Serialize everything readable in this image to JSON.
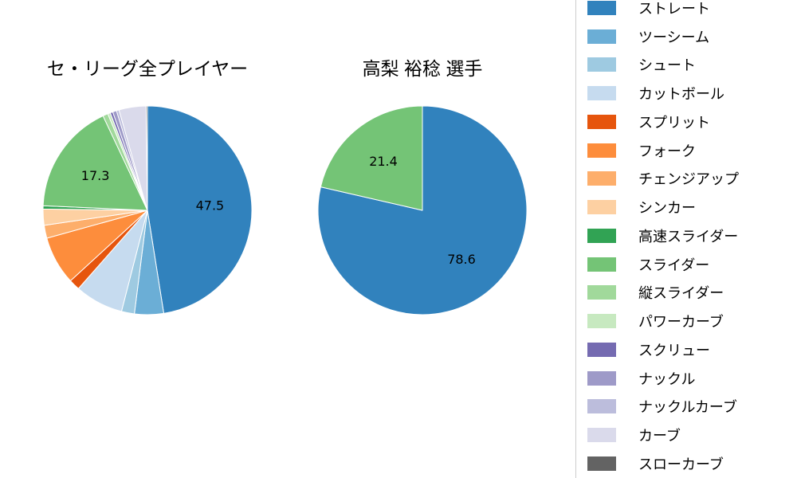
{
  "chart_data": [
    {
      "type": "pie",
      "title": "セ・リーグ全プレイヤー",
      "categories": [
        "ストレート",
        "ツーシーム",
        "シュート",
        "カットボール",
        "スプリット",
        "フォーク",
        "チェンジアップ",
        "シンカー",
        "高速スライダー",
        "スライダー",
        "縦スライダー",
        "パワーカーブ",
        "スクリュー",
        "ナックル",
        "ナックルカーブ",
        "カーブ",
        "スローカーブ"
      ],
      "values": [
        47.5,
        4.5,
        2.0,
        7.5,
        1.7,
        7.5,
        2.0,
        2.5,
        0.5,
        17.3,
        0.8,
        0.4,
        0.4,
        0.6,
        0.4,
        4.2,
        0.2
      ],
      "shown_value_labels": [
        "47.5",
        "",
        "",
        "",
        "",
        "",
        "",
        "",
        "",
        "17.3",
        "",
        "",
        "",
        "",
        "",
        "",
        ""
      ],
      "start_angle": "top",
      "direction": "clockwise",
      "note": "Only 47.5 (ストレート) and 17.3 (スライダー) are labeled in the figure; other slice values are visual estimates."
    },
    {
      "type": "pie",
      "title": "高梨 裕稔 選手",
      "categories": [
        "ストレート",
        "スライダー"
      ],
      "values": [
        78.6,
        21.4
      ],
      "shown_value_labels": [
        "78.6",
        "21.4"
      ],
      "start_angle": "top",
      "direction": "clockwise"
    }
  ],
  "palette": {
    "ストレート": "#3182bd",
    "ツーシーム": "#6baed6",
    "シュート": "#9ecae1",
    "カットボール": "#c6dbef",
    "スプリット": "#e6550d",
    "フォーク": "#fd8d3c",
    "チェンジアップ": "#fdae6b",
    "シンカー": "#fdd0a2",
    "高速スライダー": "#31a354",
    "スライダー": "#74c476",
    "縦スライダー": "#a1d99b",
    "パワーカーブ": "#c7e9c0",
    "スクリュー": "#756bb1",
    "ナックル": "#9e9ac8",
    "ナックルカーブ": "#bcbddc",
    "カーブ": "#dadaeb",
    "スローカーブ": "#636363"
  },
  "legend": {
    "items": [
      "ストレート",
      "ツーシーム",
      "シュート",
      "カットボール",
      "スプリット",
      "フォーク",
      "チェンジアップ",
      "シンカー",
      "高速スライダー",
      "スライダー",
      "縦スライダー",
      "パワーカーブ",
      "スクリュー",
      "ナックル",
      "ナックルカーブ",
      "カーブ",
      "スローカーブ"
    ]
  }
}
